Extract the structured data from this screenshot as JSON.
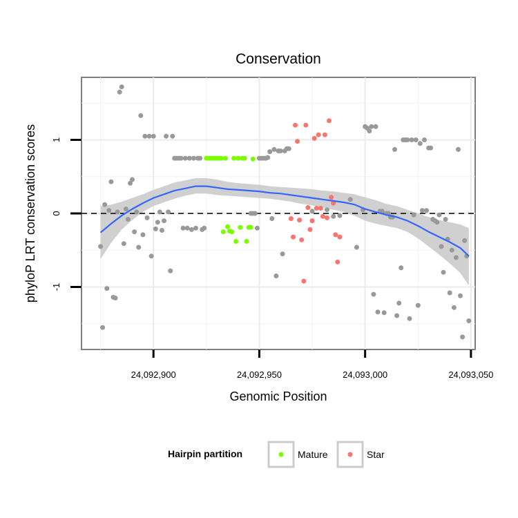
{
  "chart_data": {
    "type": "scatter",
    "title": "Conservation",
    "xlabel": "Genomic Position",
    "ylabel": "phyloP LRT conservation scores",
    "xlim": [
      24092866,
      24093052
    ],
    "ylim": [
      -1.85,
      1.85
    ],
    "x_ticks": [
      24092900,
      24092950,
      24093000,
      24093050
    ],
    "x_tick_labels": [
      "24,092,900",
      "24,092,950",
      "24,093,000",
      "24,093,050"
    ],
    "y_ticks": [
      -1,
      0,
      1
    ],
    "y_tick_labels": [
      "-1",
      "0",
      "1"
    ],
    "grid": true,
    "reference_line": 0,
    "legend": {
      "title": "Hairpin partition",
      "placement": "bottom",
      "entries": [
        {
          "label": "Mature",
          "color": "#7cfc00"
        },
        {
          "label": "Star",
          "color": "#f8766d"
        }
      ]
    },
    "colors": {
      "other": "#999999",
      "Mature": "#7cfc00",
      "Star": "#f8766d",
      "smooth": "#3366ff",
      "band": "#c8c8c8"
    },
    "series": [
      {
        "group": "other",
        "points": [
          [
            24092875,
            -0.45
          ],
          [
            24092876,
            -1.55
          ],
          [
            24092877,
            0.12
          ],
          [
            24092878,
            -1.02
          ],
          [
            24092879,
            0.04
          ],
          [
            24092880,
            0.43
          ],
          [
            24092881,
            -1.14
          ],
          [
            24092882,
            -1.15
          ],
          [
            24092883,
            0.02
          ],
          [
            24092884,
            1.65
          ],
          [
            24092885,
            1.72
          ],
          [
            24092886,
            -0.41
          ],
          [
            24092887,
            0.06
          ],
          [
            24092888,
            -0.08
          ],
          [
            24092889,
            0.41
          ],
          [
            24092890,
            0.46
          ],
          [
            24092891,
            -0.25
          ],
          [
            24092892,
            0.02
          ],
          [
            24092893,
            -0.46
          ],
          [
            24092894,
            1.33
          ],
          [
            24092895,
            -0.29
          ],
          [
            24092896,
            1.05
          ],
          [
            24092897,
            -0.06
          ],
          [
            24092898,
            1.05
          ],
          [
            24092899,
            -0.58
          ],
          [
            24092900,
            1.05
          ],
          [
            24092901,
            -0.21
          ],
          [
            24092902,
            -0.12
          ],
          [
            24092903,
            0.02
          ],
          [
            24092904,
            -0.23
          ],
          [
            24092905,
            -0.1
          ],
          [
            24092906,
            1.05
          ],
          [
            24092907,
            0.02
          ],
          [
            24092908,
            -0.78
          ],
          [
            24092909,
            1.05
          ],
          [
            24092910,
            0.75
          ],
          [
            24092911,
            0.75
          ],
          [
            24092912,
            0.75
          ],
          [
            24092913,
            0.75
          ],
          [
            24092914,
            -0.2
          ],
          [
            24092915,
            0.75
          ],
          [
            24092916,
            -0.2
          ],
          [
            24092917,
            0.75
          ],
          [
            24092918,
            -0.22
          ],
          [
            24092919,
            0.75
          ],
          [
            24092920,
            -0.2
          ],
          [
            24092921,
            0.75
          ],
          [
            24092922,
            0.75
          ],
          [
            24092923,
            -0.22
          ],
          [
            24092924,
            -0.2
          ],
          [
            24092946,
            0.0
          ],
          [
            24092947,
            0.0
          ],
          [
            24092948,
            0.0
          ],
          [
            24092949,
            -0.2
          ],
          [
            24092950,
            0.75
          ],
          [
            24092951,
            0.75
          ],
          [
            24092952,
            0.75
          ],
          [
            24092953,
            0.75
          ],
          [
            24092954,
            0.76
          ],
          [
            24092955,
            0.84
          ],
          [
            24092956,
            -0.07
          ],
          [
            24092957,
            0.87
          ],
          [
            24092958,
            -0.85
          ],
          [
            24092959,
            0.85
          ],
          [
            24092960,
            0.85
          ],
          [
            24092961,
            -0.55
          ],
          [
            24092962,
            0.85
          ],
          [
            24092963,
            0.88
          ],
          [
            24092964,
            0.88
          ],
          [
            24092975,
            0.03
          ],
          [
            24092982,
            0.05
          ],
          [
            24092985,
            -0.04
          ],
          [
            24092988,
            -0.03
          ],
          [
            24092993,
            0.19
          ],
          [
            24092996,
            -0.46
          ],
          [
            24092999,
            0.05
          ],
          [
            24093000,
            1.18
          ],
          [
            24093001,
            1.16
          ],
          [
            24093002,
            1.12
          ],
          [
            24093003,
            1.18
          ],
          [
            24093004,
            -1.1
          ],
          [
            24093005,
            1.18
          ],
          [
            24093006,
            -1.34
          ],
          [
            24093007,
            0.03
          ],
          [
            24093008,
            0.03
          ],
          [
            24093009,
            -1.35
          ],
          [
            24093010,
            0.0
          ],
          [
            24093011,
            0.0
          ],
          [
            24093012,
            -0.05
          ],
          [
            24093013,
            -0.05
          ],
          [
            24093014,
            0.87
          ],
          [
            24093015,
            -1.39
          ],
          [
            24093016,
            -1.22
          ],
          [
            24093017,
            -0.74
          ],
          [
            24093018,
            1.0
          ],
          [
            24093019,
            1.0
          ],
          [
            24093020,
            1.0
          ],
          [
            24093021,
            -1.43
          ],
          [
            24093022,
            1.0
          ],
          [
            24093023,
            -0.02
          ],
          [
            24093024,
            1.0
          ],
          [
            24093025,
            -1.25
          ],
          [
            24093026,
            0.95
          ],
          [
            24093027,
            0.04
          ],
          [
            24093028,
            1.0
          ],
          [
            24093029,
            0.04
          ],
          [
            24093030,
            0.89
          ],
          [
            24093031,
            0.89
          ],
          [
            24093032,
            -0.08
          ],
          [
            24093033,
            -0.1
          ],
          [
            24093034,
            -0.12
          ],
          [
            24093035,
            -0.02
          ],
          [
            24093036,
            -0.45
          ],
          [
            24093037,
            -0.8
          ],
          [
            24093038,
            -0.08
          ],
          [
            24093039,
            -0.35
          ],
          [
            24093040,
            -1.08
          ],
          [
            24093041,
            -0.5
          ],
          [
            24093042,
            -1.28
          ],
          [
            24093043,
            -0.6
          ],
          [
            24093044,
            0.87
          ],
          [
            24093045,
            -1.12
          ],
          [
            24093046,
            -1.68
          ],
          [
            24093047,
            -0.37
          ],
          [
            24093048,
            -0.58
          ],
          [
            24093049,
            -1.46
          ]
        ]
      },
      {
        "group": "Mature",
        "name": "Mature",
        "points": [
          [
            24092925,
            0.75
          ],
          [
            24092926,
            0.75
          ],
          [
            24092927,
            0.75
          ],
          [
            24092928,
            0.75
          ],
          [
            24092929,
            0.75
          ],
          [
            24092930,
            0.75
          ],
          [
            24092931,
            0.75
          ],
          [
            24092932,
            0.75
          ],
          [
            24092933,
            -0.25
          ],
          [
            24092934,
            0.75
          ],
          [
            24092935,
            -0.18
          ],
          [
            24092936,
            -0.24
          ],
          [
            24092937,
            -0.25
          ],
          [
            24092938,
            0.75
          ],
          [
            24092939,
            -0.38
          ],
          [
            24092940,
            0.75
          ],
          [
            24092941,
            -0.19
          ],
          [
            24092942,
            0.75
          ],
          [
            24092943,
            0.75
          ],
          [
            24092944,
            -0.38
          ],
          [
            24092945,
            -0.19
          ],
          [
            24092946,
            -0.19
          ],
          [
            24092947,
            0.74
          ]
        ]
      },
      {
        "group": "Star",
        "name": "Star",
        "points": [
          [
            24092965,
            -0.07
          ],
          [
            24092966,
            -0.32
          ],
          [
            24092967,
            1.2
          ],
          [
            24092968,
            0.98
          ],
          [
            24092969,
            -0.09
          ],
          [
            24092970,
            -0.36
          ],
          [
            24092971,
            -0.92
          ],
          [
            24092972,
            1.2
          ],
          [
            24092973,
            0.08
          ],
          [
            24092974,
            -0.22
          ],
          [
            24092975,
            -0.1
          ],
          [
            24092976,
            1.02
          ],
          [
            24092977,
            0.07
          ],
          [
            24092978,
            1.07
          ],
          [
            24092979,
            0.07
          ],
          [
            24092980,
            -0.04
          ],
          [
            24092981,
            1.07
          ],
          [
            24092982,
            -0.06
          ],
          [
            24092983,
            1.26
          ],
          [
            24092984,
            0.22
          ],
          [
            24092985,
            0.14
          ],
          [
            24092986,
            -0.29
          ],
          [
            24092987,
            -0.66
          ],
          [
            24092988,
            -0.32
          ]
        ]
      }
    ],
    "smooth_fit": {
      "x": [
        24092875,
        24092880,
        24092885,
        24092890,
        24092895,
        24092900,
        24092905,
        24092910,
        24092915,
        24092920,
        24092925,
        24092930,
        24092935,
        24092940,
        24092945,
        24092950,
        24092955,
        24092960,
        24092965,
        24092970,
        24092975,
        24092980,
        24092985,
        24092990,
        24092995,
        24093000,
        24093005,
        24093010,
        24093015,
        24093020,
        24093025,
        24093030,
        24093035,
        24093040,
        24093045,
        24093049
      ],
      "y": [
        -0.26,
        -0.14,
        -0.03,
        0.06,
        0.14,
        0.21,
        0.26,
        0.31,
        0.34,
        0.37,
        0.37,
        0.35,
        0.33,
        0.32,
        0.31,
        0.3,
        0.28,
        0.27,
        0.25,
        0.23,
        0.21,
        0.19,
        0.17,
        0.15,
        0.12,
        0.06,
        0.02,
        -0.02,
        -0.05,
        -0.1,
        -0.17,
        -0.25,
        -0.32,
        -0.39,
        -0.47,
        -0.58
      ],
      "lower": [
        -0.62,
        -0.4,
        -0.22,
        -0.09,
        0.02,
        0.1,
        0.15,
        0.2,
        0.24,
        0.27,
        0.27,
        0.25,
        0.24,
        0.23,
        0.22,
        0.21,
        0.2,
        0.18,
        0.16,
        0.13,
        0.11,
        0.08,
        0.05,
        0.02,
        -0.03,
        -0.1,
        -0.14,
        -0.17,
        -0.2,
        -0.25,
        -0.34,
        -0.45,
        -0.56,
        -0.68,
        -0.81,
        -0.98
      ],
      "upper": [
        0.1,
        0.12,
        0.16,
        0.21,
        0.26,
        0.32,
        0.37,
        0.42,
        0.45,
        0.48,
        0.48,
        0.46,
        0.43,
        0.41,
        0.4,
        0.39,
        0.37,
        0.36,
        0.35,
        0.34,
        0.33,
        0.31,
        0.3,
        0.28,
        0.26,
        0.22,
        0.18,
        0.13,
        0.1,
        0.05,
        0.0,
        -0.05,
        -0.09,
        -0.12,
        -0.15,
        -0.2
      ]
    }
  }
}
